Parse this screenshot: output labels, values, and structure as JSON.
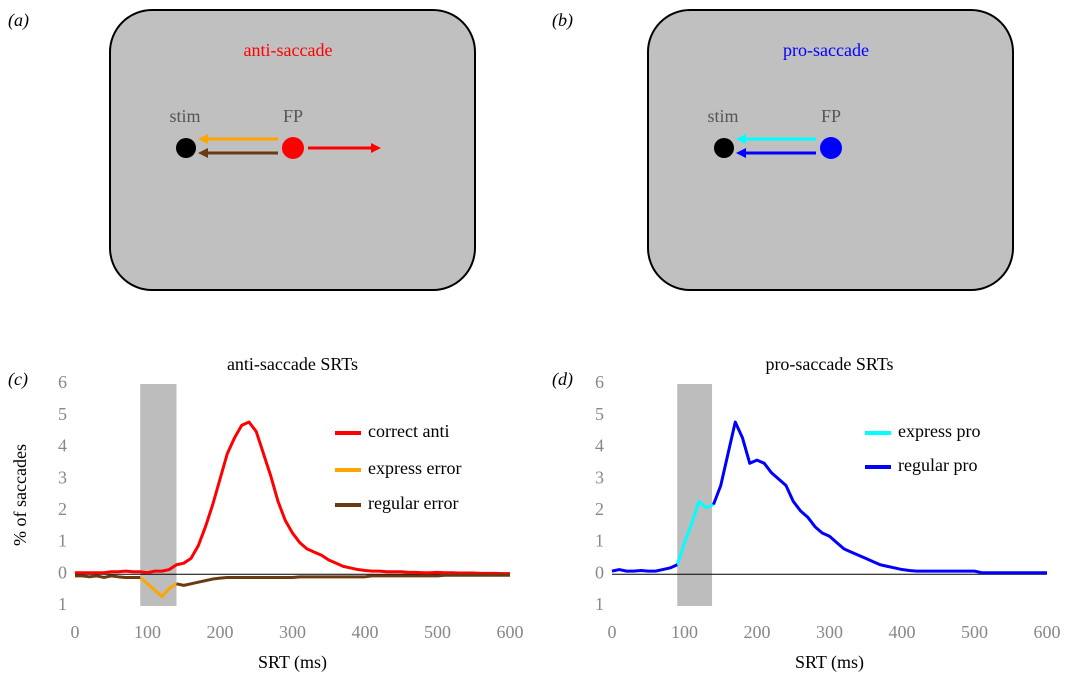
{
  "panels": [
    {
      "label": "(a)",
      "title": "anti-saccade",
      "stim": "stim",
      "fp": "FP"
    },
    {
      "label": "(b)",
      "title": "pro-saccade",
      "stim": "stim",
      "fp": "FP"
    }
  ],
  "chart_data": [
    {
      "type": "line",
      "panel_label": "(c)",
      "title": "anti-saccade SRTs",
      "x_label": "SRT (ms)",
      "y_label": "% of saccades",
      "xlim": [
        0,
        600
      ],
      "xticks": [
        0,
        100,
        200,
        300,
        400,
        500,
        600
      ],
      "ylim": [
        -1,
        6
      ],
      "yticks": [
        {
          "value": -1,
          "label": "1"
        },
        0,
        1,
        2,
        3,
        4,
        5,
        6
      ],
      "shade": [
        90,
        140
      ],
      "hline": 0,
      "x": [
        0,
        10,
        20,
        30,
        40,
        50,
        60,
        70,
        80,
        90,
        100,
        110,
        120,
        130,
        140,
        150,
        160,
        170,
        180,
        190,
        200,
        210,
        220,
        230,
        240,
        250,
        260,
        270,
        280,
        290,
        300,
        310,
        320,
        330,
        340,
        350,
        360,
        370,
        380,
        390,
        400,
        410,
        420,
        430,
        440,
        450,
        460,
        470,
        480,
        490,
        500,
        510,
        520,
        530,
        540,
        550,
        560,
        570,
        580,
        590,
        600
      ],
      "series": [
        {
          "name": "correct anti",
          "color": "#ff0000",
          "values": [
            0.05,
            0.05,
            0.05,
            0.05,
            0.05,
            0.08,
            0.08,
            0.1,
            0.08,
            0.08,
            0.05,
            0.1,
            0.1,
            0.15,
            0.3,
            0.35,
            0.5,
            0.9,
            1.5,
            2.2,
            3.0,
            3.8,
            4.3,
            4.7,
            4.8,
            4.5,
            3.8,
            3.1,
            2.3,
            1.7,
            1.3,
            1.0,
            0.8,
            0.7,
            0.6,
            0.45,
            0.35,
            0.25,
            0.2,
            0.15,
            0.12,
            0.1,
            0.1,
            0.08,
            0.08,
            0.08,
            0.06,
            0.06,
            0.05,
            0.05,
            0.06,
            0.05,
            0.05,
            0.04,
            0.04,
            0.04,
            0.03,
            0.03,
            0.03,
            0.02,
            0.02
          ]
        },
        {
          "name": "express error",
          "color": "#ffa500",
          "values": [
            null,
            null,
            null,
            null,
            null,
            null,
            null,
            null,
            null,
            -0.1,
            -0.3,
            -0.5,
            -0.7,
            -0.45,
            -0.3,
            null,
            null,
            null,
            null,
            null,
            null,
            null,
            null,
            null,
            null,
            null,
            null,
            null,
            null,
            null,
            null,
            null,
            null,
            null,
            null,
            null,
            null,
            null,
            null,
            null,
            null,
            null,
            null,
            null,
            null,
            null,
            null,
            null,
            null,
            null,
            null,
            null,
            null,
            null,
            null,
            null,
            null,
            null,
            null,
            null,
            null
          ]
        },
        {
          "name": "regular error",
          "color": "#6b3a10",
          "values": [
            -0.05,
            -0.05,
            -0.08,
            -0.05,
            -0.1,
            -0.05,
            -0.08,
            -0.1,
            -0.1,
            -0.1,
            null,
            null,
            null,
            null,
            -0.3,
            -0.35,
            -0.3,
            -0.25,
            -0.2,
            -0.15,
            -0.12,
            -0.1,
            -0.1,
            -0.1,
            -0.1,
            -0.1,
            -0.1,
            -0.1,
            -0.1,
            -0.1,
            -0.1,
            -0.08,
            -0.08,
            -0.08,
            -0.08,
            -0.08,
            -0.08,
            -0.08,
            -0.08,
            -0.08,
            -0.08,
            -0.05,
            -0.05,
            -0.05,
            -0.05,
            -0.05,
            -0.05,
            -0.05,
            -0.05,
            -0.05,
            -0.05,
            -0.03,
            -0.03,
            -0.03,
            -0.03,
            -0.03,
            -0.03,
            -0.03,
            -0.03,
            -0.03,
            -0.03
          ]
        }
      ]
    },
    {
      "type": "line",
      "panel_label": "(d)",
      "title": "pro-saccade SRTs",
      "x_label": "SRT (ms)",
      "xlim": [
        0,
        600
      ],
      "xticks": [
        0,
        100,
        200,
        300,
        400,
        500,
        600
      ],
      "ylim": [
        -1,
        6
      ],
      "yticks": [
        {
          "value": -1,
          "label": "1"
        },
        0,
        1,
        2,
        3,
        4,
        5,
        6
      ],
      "shade": [
        90,
        138
      ],
      "hline": 0,
      "x": [
        0,
        10,
        20,
        30,
        40,
        50,
        60,
        70,
        80,
        90,
        100,
        110,
        120,
        130,
        140,
        150,
        160,
        170,
        180,
        190,
        200,
        210,
        220,
        230,
        240,
        250,
        260,
        270,
        280,
        290,
        300,
        310,
        320,
        330,
        340,
        350,
        360,
        370,
        380,
        390,
        400,
        410,
        420,
        430,
        440,
        450,
        460,
        470,
        480,
        490,
        500,
        510,
        520,
        530,
        540,
        550,
        560,
        570,
        580,
        590,
        600
      ],
      "series": [
        {
          "name": "express pro",
          "color": "#00ffff",
          "values": [
            null,
            null,
            null,
            null,
            null,
            null,
            null,
            null,
            null,
            0.3,
            1.0,
            1.6,
            2.3,
            2.1,
            2.2,
            null,
            null,
            null,
            null,
            null,
            null,
            null,
            null,
            null,
            null,
            null,
            null,
            null,
            null,
            null,
            null,
            null,
            null,
            null,
            null,
            null,
            null,
            null,
            null,
            null,
            null,
            null,
            null,
            null,
            null,
            null,
            null,
            null,
            null,
            null,
            null,
            null,
            null,
            null,
            null,
            null,
            null,
            null,
            null,
            null,
            null
          ]
        },
        {
          "name": "regular pro",
          "color": "#0000ff",
          "values": [
            0.1,
            0.15,
            0.1,
            0.1,
            0.12,
            0.1,
            0.1,
            0.15,
            0.2,
            0.3,
            null,
            null,
            null,
            null,
            2.2,
            2.8,
            3.8,
            4.8,
            4.3,
            3.5,
            3.6,
            3.5,
            3.2,
            3.0,
            2.8,
            2.3,
            2.0,
            1.8,
            1.5,
            1.3,
            1.2,
            1.0,
            0.8,
            0.7,
            0.6,
            0.5,
            0.4,
            0.3,
            0.25,
            0.2,
            0.15,
            0.12,
            0.1,
            0.1,
            0.1,
            0.1,
            0.1,
            0.1,
            0.1,
            0.1,
            0.1,
            0.05,
            0.05,
            0.05,
            0.05,
            0.05,
            0.05,
            0.05,
            0.05,
            0.05,
            0.05
          ]
        }
      ]
    }
  ]
}
